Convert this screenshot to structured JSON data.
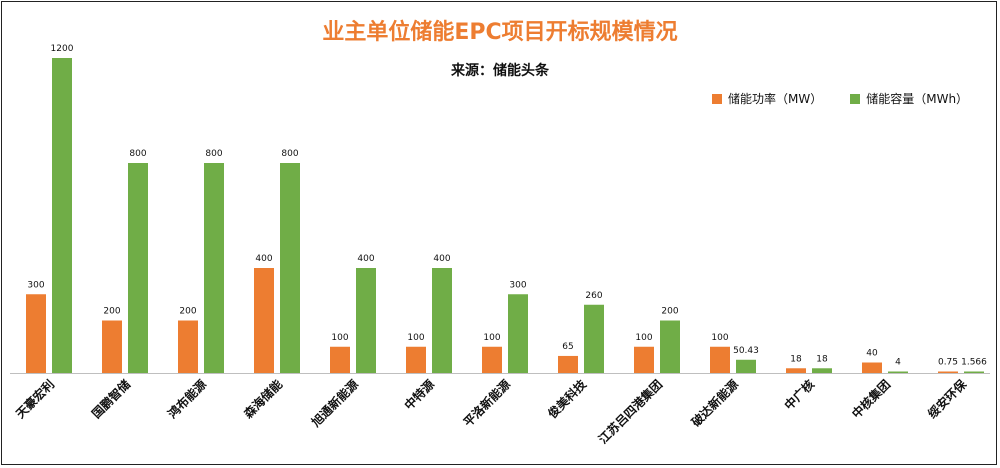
{
  "chart_data": {
    "type": "bar",
    "title": "业主单位储能EPC项目开标规模情况",
    "subtitle": "来源：储能头条",
    "categories": [
      "天豪宏利",
      "国鹏智储",
      "鸿布能源",
      "森海储能",
      "旭通新能源",
      "中特源",
      "平洛新能源",
      "俊美科技",
      "江苏吕四港集团",
      "破达新能源",
      "中广核",
      "中核集团",
      "绥安环保"
    ],
    "series": [
      {
        "name": "储能功率（MW）",
        "color": "#ED7D31",
        "values": [
          300,
          200,
          200,
          400,
          100,
          100,
          100,
          65,
          100,
          100,
          18,
          40,
          0.75
        ],
        "labels": [
          "300",
          "200",
          "200",
          "400",
          "100",
          "100",
          "100",
          "65",
          "100",
          "100",
          "18",
          "40",
          "0.75"
        ]
      },
      {
        "name": "储能容量（MWh）",
        "color": "#70AD47",
        "values": [
          1200,
          800,
          800,
          800,
          400,
          400,
          300,
          260,
          200,
          50.43,
          18,
          4,
          1.566
        ],
        "labels": [
          "1200",
          "800",
          "800",
          "800",
          "400",
          "400",
          "300",
          "260",
          "200",
          "50.43",
          "18",
          "4",
          "1.566"
        ]
      }
    ],
    "ylim": [
      0,
      1200
    ],
    "legend_position": "top-right",
    "grid": false
  }
}
